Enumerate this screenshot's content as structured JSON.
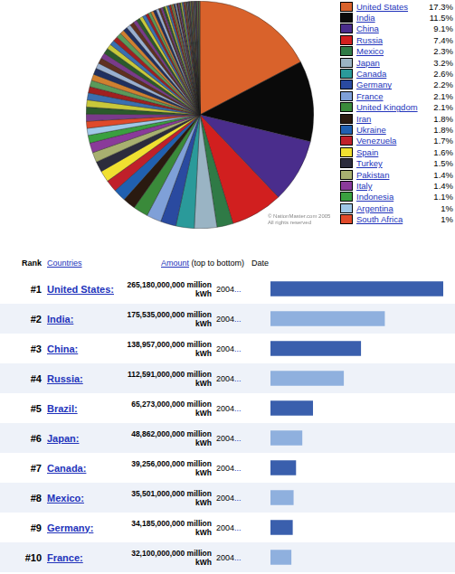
{
  "chart_data": [
    {
      "type": "pie",
      "categories": [
        "United States",
        "India",
        "China",
        "Russia",
        "Mexico",
        "Japan",
        "Canada",
        "Germany",
        "France",
        "United Kingdom",
        "Iran",
        "Ukraine",
        "Venezuela",
        "Spain",
        "Turkey",
        "Pakistan",
        "Italy",
        "Indonesia",
        "Argentina",
        "South Africa",
        null,
        null,
        null,
        null,
        null,
        null,
        null,
        null,
        null,
        null,
        null,
        null,
        null,
        null,
        null,
        null,
        null,
        null,
        null,
        null,
        null,
        null,
        null,
        null,
        null,
        null,
        null,
        null,
        null,
        null,
        null,
        null,
        null,
        null,
        null,
        null,
        null,
        null,
        null,
        null,
        null,
        null,
        null,
        null,
        null,
        null,
        null,
        null,
        null,
        null,
        null,
        null,
        null,
        null,
        null,
        null,
        null,
        null,
        null,
        null,
        null,
        null,
        null,
        null,
        null,
        null
      ],
      "values": [
        17.3,
        11.5,
        9.1,
        7.4,
        2.3,
        3.2,
        2.6,
        2.2,
        2.1,
        2.1,
        1.8,
        1.8,
        1.7,
        1.6,
        1.5,
        1.4,
        1.4,
        1.1,
        1,
        1,
        1.0,
        1.0,
        1.0,
        1.0,
        0.9,
        0.9,
        0.9,
        0.9,
        0.8,
        0.8,
        0.8,
        0.8,
        0.7,
        0.7,
        0.7,
        0.7,
        0.6,
        0.6,
        0.6,
        0.6,
        0.5,
        0.5,
        0.5,
        0.5,
        0.4,
        0.4,
        0.4,
        0.4,
        0.4,
        0.3,
        0.3,
        0.3,
        0.3,
        0.3,
        0.3,
        0.2,
        0.2,
        0.2,
        0.2,
        0.2,
        0.2,
        0.2,
        0.2,
        0.2,
        0.2,
        0.1,
        0.1,
        0.1,
        0.1,
        0.1,
        0.1,
        0.1,
        0.1,
        0.1,
        0.1,
        0.1,
        0.1,
        0.1,
        0.1,
        0.1,
        0.1,
        0.1,
        0.1,
        0.1,
        0.1,
        0.1
      ],
      "value_labels": [
        "17.3%",
        "11.5%",
        "9.1%",
        "7.4%",
        "2.3%",
        "3.2%",
        "2.6%",
        "2.2%",
        "2.1%",
        "2.1%",
        "1.8%",
        "1.8%",
        "1.7%",
        "1.6%",
        "1.5%",
        "1.4%",
        "1.4%",
        "1.1%",
        "1%",
        "1%",
        null,
        null,
        null,
        null,
        null,
        null,
        null,
        null,
        null,
        null,
        null,
        null,
        null,
        null,
        null,
        null,
        null,
        null,
        null,
        null,
        null,
        null,
        null,
        null,
        null,
        null,
        null,
        null,
        null,
        null,
        null,
        null,
        null,
        null,
        null,
        null,
        null,
        null,
        null,
        null,
        null,
        null,
        null,
        null,
        null,
        null,
        null,
        null,
        null,
        null,
        null,
        null,
        null,
        null,
        null,
        null,
        null,
        null,
        null,
        null,
        null,
        null,
        null,
        null,
        null,
        null
      ],
      "colors": [
        "#d9622b",
        "#0a0a0a",
        "#4a2d8c",
        "#d11f1f",
        "#2f7a46",
        "#9ab4c4",
        "#2a9a9a",
        "#2a4aa0",
        "#7fa0d8",
        "#3a8a3a",
        "#2a1a10",
        "#2060b0",
        "#c0202a",
        "#f0e030",
        "#2c2c3c",
        "#a8b070",
        "#8a3a9a",
        "#3aa040",
        "#a0c8e8",
        "#e04a2a",
        "#7a3a8a",
        "#2b5a2b",
        "#c8c83a",
        "#3a6fb0",
        "#a02020",
        "#5a9a5a",
        "#d08030",
        "#203060",
        "#9ab0d0",
        "#603020",
        "#7a3a8a",
        "#2b5a2b",
        "#c8c83a",
        "#3a6fb0",
        "#a02020",
        "#5a9a5a",
        "#d08030",
        "#203060",
        "#9ab0d0",
        "#603020",
        "#7a3a8a",
        "#2b5a2b",
        "#c8c83a",
        "#3a6fb0",
        "#a02020",
        "#5a9a5a",
        "#d08030",
        "#203060",
        "#9ab0d0",
        "#603020",
        "#7a3a8a",
        "#2b5a2b",
        "#c8c83a",
        "#3a6fb0",
        "#a02020",
        "#5a9a5a",
        "#d08030",
        "#203060",
        "#9ab0d0",
        "#603020",
        "#7a3a8a",
        "#2b5a2b",
        "#c8c83a",
        "#3a6fb0",
        "#a02020",
        "#5a9a5a",
        "#d08030",
        "#203060",
        "#9ab0d0",
        "#603020",
        "#7a3a8a",
        "#2b5a2b",
        "#c8c83a",
        "#3a6fb0",
        "#a02020",
        "#5a9a5a",
        "#d08030",
        "#203060",
        "#9ab0d0",
        "#603020",
        "#7a3a8a",
        "#2b5a2b",
        "#c8c83a",
        "#3a6fb0",
        "#a02020",
        "#5a9a5a"
      ],
      "legend": "right",
      "annotations": [
        "© NationMaster.com 2005",
        "All rights reserved"
      ]
    },
    {
      "type": "bar",
      "orientation": "horizontal",
      "column_headers": {
        "rank": "Rank",
        "countries": "Countries",
        "amount": "Amount",
        "amount_note": "(top to bottom)",
        "date": "Date"
      },
      "rank_labels": [
        "#1",
        "#2",
        "#3",
        "#4",
        "#5",
        "#6",
        "#7",
        "#8",
        "#9",
        "#10"
      ],
      "categories": [
        "United States:",
        "India:",
        "China:",
        "Russia:",
        "Brazil:",
        "Japan:",
        "Canada:",
        "Mexico:",
        "Germany:",
        "France:"
      ],
      "values": [
        265180000000,
        175535000000,
        138957000000,
        112591000000,
        65273000000,
        48862000000,
        39256000000,
        35501000000,
        34185000000,
        32100000000
      ],
      "value_labels": [
        "265,180,000,000 million kWh",
        "175,535,000,000 million kWh",
        "138,957,000,000 million kWh",
        "112,591,000,000 million kWh",
        "65,273,000,000 million kWh",
        "48,862,000,000 million kWh",
        "39,256,000,000 million kWh",
        "35,501,000,000 million kWh",
        "34,185,000,000 million kWh",
        "32,100,000,000 million kWh"
      ],
      "dates": [
        "2004",
        "2004",
        "2004",
        "2004",
        "2004",
        "2004",
        "2004",
        "2004",
        "2004",
        "2004"
      ],
      "date_suffix": "...",
      "colors": [
        "#3a5fad",
        "#8fb0de",
        "#3a5fad",
        "#8fb0de",
        "#3a5fad",
        "#8fb0de",
        "#3a5fad",
        "#8fb0de",
        "#3a5fad",
        "#8fb0de"
      ],
      "xlim": [
        0,
        265180000000
      ],
      "tick_labels": false,
      "grid": false
    }
  ]
}
